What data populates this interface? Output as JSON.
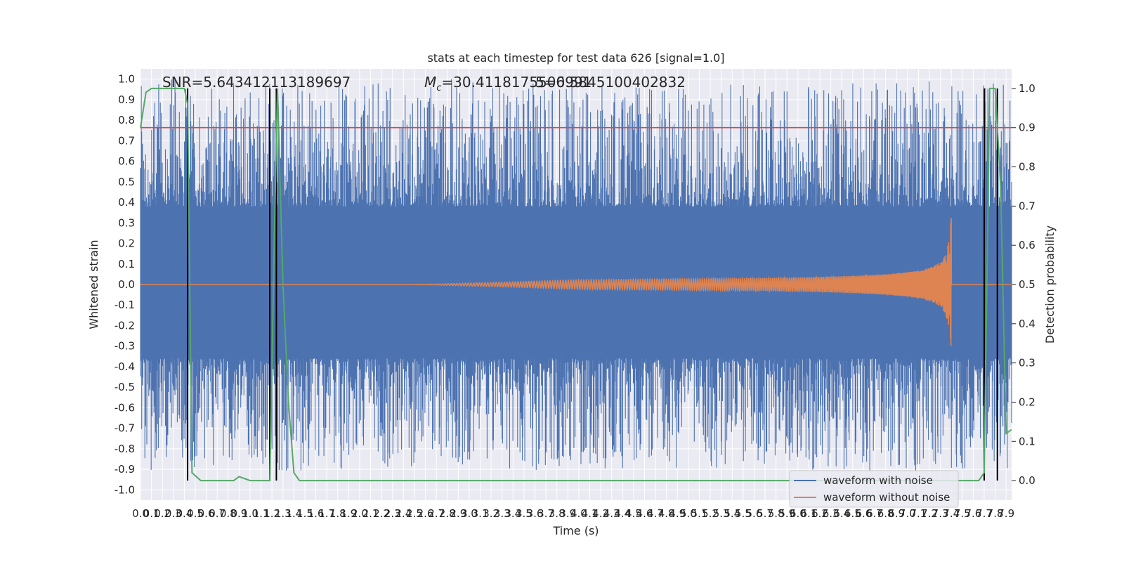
{
  "chart_data": {
    "type": "line",
    "title": "stats at each timestep for test data 626 [signal=1.0]",
    "xlabel": "Time (s)",
    "ylabel": "Whitened strain",
    "y2label": "Detection probability",
    "xlim": [
      0.0,
      7.95
    ],
    "ylim": [
      -1.05,
      1.05
    ],
    "y2lim": [
      -0.05,
      1.05
    ],
    "x_ticks": [
      0.0,
      0.1,
      0.2,
      0.3,
      0.4,
      0.5,
      0.6,
      0.7,
      0.8,
      0.9,
      1.0,
      1.1,
      1.2,
      1.3,
      1.4,
      1.5,
      1.6,
      1.7,
      1.8,
      1.9,
      2.0,
      2.1,
      2.2,
      2.3,
      2.4,
      2.5,
      2.6,
      2.7,
      2.8,
      2.9,
      3.0,
      3.1,
      3.2,
      3.3,
      3.4,
      3.5,
      3.6,
      3.7,
      3.8,
      3.9,
      4.0,
      4.1,
      4.2,
      4.3,
      4.4,
      4.5,
      4.6,
      4.7,
      4.8,
      4.9,
      5.0,
      5.1,
      5.2,
      5.3,
      5.4,
      5.5,
      5.6,
      5.7,
      5.8,
      5.9,
      6.0,
      6.1,
      6.2,
      6.3,
      6.4,
      6.5,
      6.6,
      6.7,
      6.8,
      6.9,
      7.0,
      7.1,
      7.2,
      7.3,
      7.4,
      7.5,
      7.6,
      7.7,
      7.8,
      7.9
    ],
    "y_ticks": [
      -1.0,
      -0.9,
      -0.8,
      -0.7,
      -0.6,
      -0.5,
      -0.4,
      -0.3,
      -0.2,
      -0.1,
      0.0,
      0.1,
      0.2,
      0.3,
      0.4,
      0.5,
      0.6,
      0.7,
      0.8,
      0.9,
      1.0
    ],
    "y2_ticks": [
      0.0,
      0.1,
      0.2,
      0.3,
      0.4,
      0.5,
      0.6,
      0.7,
      0.8,
      0.9,
      1.0
    ],
    "annotations": {
      "snr": "SNR=5.643412113189697",
      "mc": "=30.4118175506991",
      "mc_symbol": "M",
      "mc_sub": "c",
      "overlap": "5=0.5845100402832"
    },
    "threshold_y2": 0.9,
    "white_hlines_y": [
      0.42,
      0.23,
      0.04,
      -0.15,
      -0.34
    ],
    "vlines_x": [
      0.43,
      1.18,
      1.24,
      7.7,
      7.82
    ],
    "noise": {
      "name": "waveform with noise",
      "color": "#4c72b0",
      "band_low": -0.36,
      "band_high": 0.38
    },
    "signal": {
      "name": "waveform without noise",
      "color": "#dd8452",
      "t_merge": 7.4,
      "peak_amplitude": 0.32
    },
    "probability": {
      "color": "#55a868",
      "x": [
        0.0,
        0.05,
        0.1,
        0.15,
        0.2,
        0.25,
        0.3,
        0.35,
        0.4,
        0.43,
        0.47,
        0.55,
        0.6,
        0.7,
        0.8,
        0.85,
        0.9,
        1.0,
        1.1,
        1.15,
        1.18,
        1.22,
        1.25,
        1.3,
        1.35,
        1.4,
        1.45,
        7.65,
        7.7,
        7.75,
        7.8,
        7.85,
        7.9,
        7.95
      ],
      "y": [
        0.9,
        0.99,
        1.0,
        1.0,
        1.0,
        1.0,
        1.0,
        1.0,
        1.0,
        0.96,
        0.02,
        0.0,
        0.0,
        0.0,
        0.0,
        0.0,
        0.01,
        0.0,
        0.0,
        0.0,
        0.0,
        0.6,
        1.0,
        0.5,
        0.2,
        0.02,
        0.0,
        0.0,
        0.02,
        1.0,
        1.0,
        0.75,
        0.12,
        0.13
      ]
    },
    "threshold_color": "#c44e52",
    "legend_position": "lower-right"
  }
}
